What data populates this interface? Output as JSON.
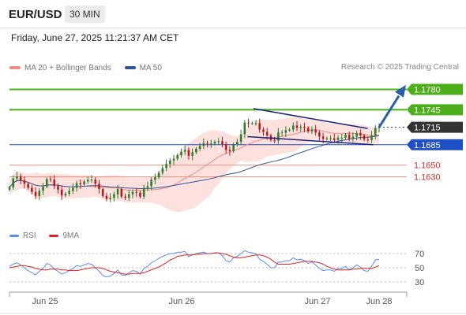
{
  "header": {
    "symbol": "EUR/USD",
    "timeframe": "30 MIN"
  },
  "datetime": "Friday, June 27, 2025 11:21:37 AM CET",
  "legend": {
    "items": [
      {
        "label": "MA 20 + Bollinger Bands",
        "color": "#f28b82"
      },
      {
        "label": "MA 50",
        "color": "#2f5597"
      }
    ]
  },
  "copyright": "Research © 2025 Trading Central",
  "rsi_legend": {
    "items": [
      {
        "label": "RSI",
        "color": "#5b8def"
      },
      {
        "label": "9MA",
        "color": "#e02020"
      }
    ]
  },
  "colors": {
    "resistance": "#4caf1a",
    "support_blue": "#1f4fc4",
    "support_red": "#f29080",
    "bull": "#2e7d32",
    "bear": "#b71c1c",
    "arrow": "#2a5fa8",
    "channel": "#1a237e",
    "band_fill": "#fbd7d3"
  },
  "chart_data": {
    "type": "candlestick",
    "symbol": "EUR/USD",
    "timeframe": "30 MIN",
    "ylim": [
      1.1555,
      1.1805
    ],
    "x_ticks": [
      "Jun 25",
      "Jun 26",
      "Jun 27",
      "Jun 28"
    ],
    "levels": [
      {
        "value": 1.178,
        "label": "1.1780",
        "kind": "resistance"
      },
      {
        "value": 1.1745,
        "label": "1.1745",
        "kind": "resistance"
      },
      {
        "value": 1.1715,
        "label": "1.1715",
        "kind": "last"
      },
      {
        "value": 1.1685,
        "label": "1.1685",
        "kind": "support"
      },
      {
        "value": 1.165,
        "label": "1.1650",
        "kind": "support-minor"
      },
      {
        "value": 1.163,
        "label": "1.1630",
        "kind": "support-minor"
      }
    ],
    "close": [
      1.1612,
      1.1627,
      1.1631,
      1.1624,
      1.1618,
      1.1611,
      1.1604,
      1.1597,
      1.1606,
      1.1613,
      1.1626,
      1.1625,
      1.1614,
      1.1608,
      1.1598,
      1.1601,
      1.1606,
      1.1611,
      1.1619,
      1.1617,
      1.1622,
      1.1625,
      1.1625,
      1.1618,
      1.1609,
      1.1597,
      1.1592,
      1.1594,
      1.16,
      1.1609,
      1.1596,
      1.1594,
      1.16,
      1.1604,
      1.1603,
      1.1596,
      1.1611,
      1.1614,
      1.1625,
      1.1629,
      1.1637,
      1.1645,
      1.1652,
      1.1658,
      1.1661,
      1.1667,
      1.1673,
      1.1676,
      1.1666,
      1.1672,
      1.1678,
      1.1683,
      1.1688,
      1.1687,
      1.1687,
      1.169,
      1.1691,
      1.1686,
      1.1676,
      1.1674,
      1.1686,
      1.169,
      1.1703,
      1.1723,
      1.1722,
      1.1722,
      1.1722,
      1.1711,
      1.1707,
      1.1701,
      1.1693,
      1.1692,
      1.1706,
      1.1706,
      1.171,
      1.1711,
      1.1718,
      1.1714,
      1.1716,
      1.1714,
      1.1708,
      1.1711,
      1.1706,
      1.1699,
      1.1695,
      1.1696,
      1.1696,
      1.1693,
      1.1697,
      1.1697,
      1.1702,
      1.1695,
      1.1699,
      1.1705,
      1.1701,
      1.1694,
      1.1693,
      1.1701,
      1.1714,
      1.1715
    ],
    "rsi": [
      52,
      55,
      57,
      54,
      50,
      46,
      43,
      40,
      45,
      49,
      56,
      54,
      48,
      45,
      41,
      43,
      46,
      49,
      53,
      52,
      54,
      56,
      55,
      50,
      45,
      39,
      37,
      38,
      42,
      47,
      40,
      39,
      43,
      46,
      45,
      41,
      49,
      52,
      57,
      60,
      63,
      66,
      68,
      70,
      70,
      72,
      72,
      73,
      66,
      68,
      70,
      71,
      72,
      70,
      70,
      71,
      71,
      67,
      60,
      58,
      64,
      66,
      70,
      74,
      72,
      71,
      70,
      62,
      59,
      55,
      50,
      50,
      58,
      58,
      60,
      60,
      64,
      61,
      62,
      60,
      56,
      58,
      54,
      49,
      46,
      47,
      47,
      45,
      49,
      49,
      52,
      47,
      50,
      54,
      51,
      46,
      45,
      52,
      61,
      62
    ],
    "rsi_ma": [
      50,
      51,
      52,
      53,
      53,
      52,
      51,
      49,
      48,
      47,
      47,
      48,
      48,
      48,
      47,
      47,
      46,
      46,
      46,
      47,
      48,
      49,
      50,
      50,
      50,
      49,
      47,
      45,
      44,
      43,
      42,
      41,
      41,
      42,
      42,
      42,
      43,
      45,
      47,
      49,
      51,
      54,
      57,
      61,
      63,
      66,
      67,
      68,
      68,
      68,
      69,
      69,
      70,
      70,
      70,
      71,
      71,
      70,
      69,
      67,
      65,
      64,
      64,
      65,
      66,
      67,
      68,
      68,
      67,
      65,
      62,
      58,
      55,
      55,
      55,
      55,
      56,
      57,
      58,
      59,
      59,
      59,
      58,
      57,
      55,
      52,
      50,
      48,
      47,
      47,
      47,
      47,
      48,
      48,
      49,
      49,
      49,
      49,
      51,
      53
    ],
    "rsi_ylim": [
      20,
      80
    ],
    "rsi_ticks": [
      70,
      50,
      30
    ],
    "channel": {
      "upper": [
        [
          0.66,
          1.1747
        ],
        [
          0.969,
          1.1713
        ]
      ],
      "lower": [
        [
          0.644,
          1.1699
        ],
        [
          0.984,
          1.1685
        ]
      ]
    }
  }
}
